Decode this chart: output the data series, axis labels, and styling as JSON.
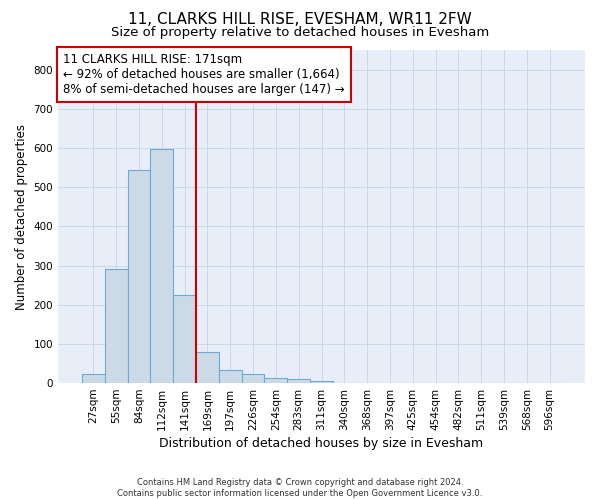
{
  "title1": "11, CLARKS HILL RISE, EVESHAM, WR11 2FW",
  "title2": "Size of property relative to detached houses in Evesham",
  "xlabel": "Distribution of detached houses by size in Evesham",
  "ylabel": "Number of detached properties",
  "footer1": "Contains HM Land Registry data © Crown copyright and database right 2024.",
  "footer2": "Contains public sector information licensed under the Open Government Licence v3.0.",
  "bar_labels": [
    "27sqm",
    "55sqm",
    "84sqm",
    "112sqm",
    "141sqm",
    "169sqm",
    "197sqm",
    "226sqm",
    "254sqm",
    "283sqm",
    "311sqm",
    "340sqm",
    "368sqm",
    "397sqm",
    "425sqm",
    "454sqm",
    "482sqm",
    "511sqm",
    "539sqm",
    "568sqm",
    "596sqm"
  ],
  "bar_values": [
    22,
    290,
    543,
    598,
    224,
    80,
    33,
    23,
    12,
    10,
    6,
    0,
    0,
    0,
    0,
    0,
    0,
    0,
    0,
    0,
    0
  ],
  "bar_color": "#ccdae8",
  "bar_edge_color": "#6aaad4",
  "vline_color": "#cc0000",
  "annotation_line1": "11 CLARKS HILL RISE: 171sqm",
  "annotation_line2": "← 92% of detached houses are smaller (1,664)",
  "annotation_line3": "8% of semi-detached houses are larger (147) →",
  "annotation_box_color": "#cc0000",
  "ylim": [
    0,
    850
  ],
  "yticks": [
    0,
    100,
    200,
    300,
    400,
    500,
    600,
    700,
    800
  ],
  "grid_color": "#c8d4e4",
  "background_color": "#e8eef8",
  "title1_fontsize": 11,
  "title2_fontsize": 9.5,
  "xlabel_fontsize": 9,
  "ylabel_fontsize": 8.5,
  "tick_fontsize": 7.5,
  "annotation_fontsize": 8.5,
  "footer_fontsize": 6
}
